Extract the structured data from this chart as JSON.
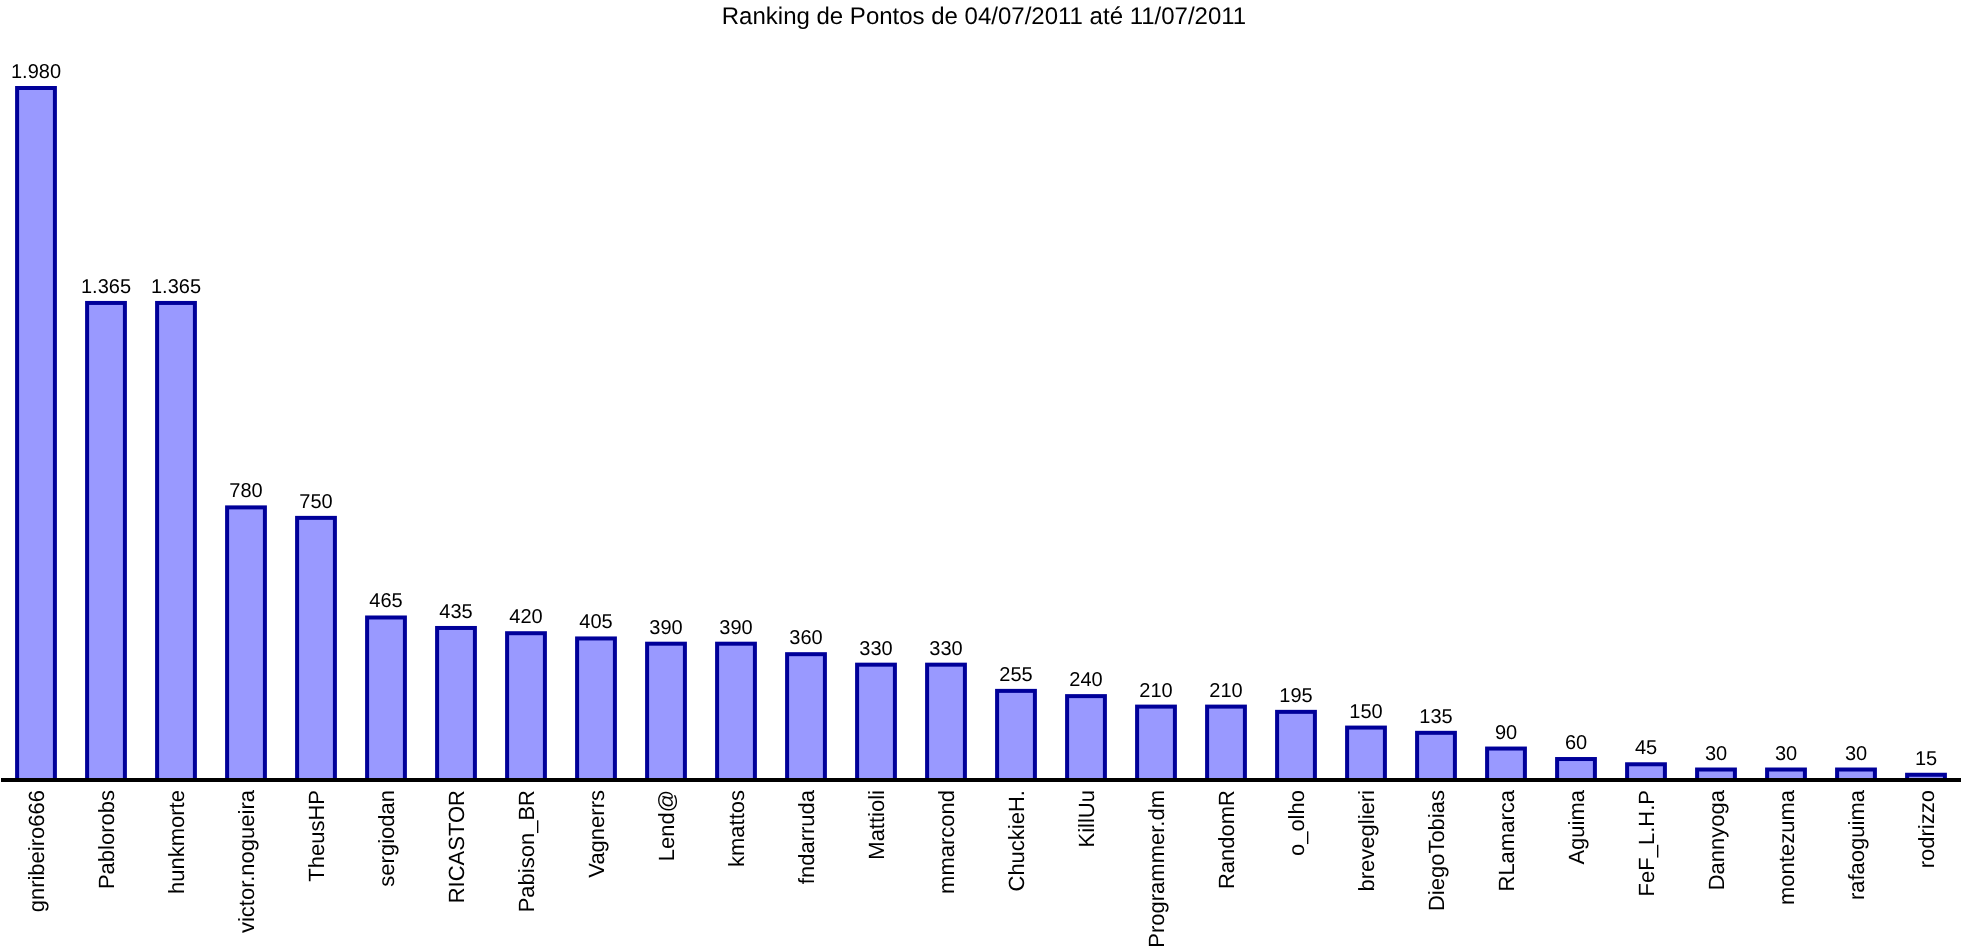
{
  "chart_data": {
    "type": "bar",
    "title": "Ranking de Pontos de 04/07/2011 até 11/07/2011",
    "categories": [
      "gnribeiro666",
      "Pablorobs",
      "hunkmorte",
      "victor.nogueira",
      "TheusHP",
      "sergiodan",
      "RICASTOR",
      "Pabison_BR",
      "Vagnerrs",
      "Lend@",
      "kmattos",
      "fndarruda",
      "Mattioli",
      "mmarcond",
      "ChuckieH.",
      "KillUu",
      "Programmer.dm",
      "RandomR",
      "o_olho",
      "breveglieri",
      "DiegoTobias",
      "RLamarca",
      "Aguima",
      "FeF_L.H.P",
      "Dannyoga",
      "montezuma",
      "rafaoguima",
      "rodrizzo"
    ],
    "values": [
      1980,
      1365,
      1365,
      780,
      750,
      465,
      435,
      420,
      405,
      390,
      390,
      360,
      330,
      330,
      255,
      240,
      210,
      210,
      195,
      150,
      135,
      90,
      60,
      45,
      30,
      30,
      30,
      15
    ],
    "value_labels": [
      "1.980",
      "1.365",
      "1.365",
      "780",
      "750",
      "465",
      "435",
      "420",
      "405",
      "390",
      "390",
      "360",
      "330",
      "330",
      "255",
      "240",
      "210",
      "210",
      "195",
      "150",
      "135",
      "90",
      "60",
      "45",
      "30",
      "30",
      "30",
      "15"
    ],
    "color": "#9999ff"
  }
}
